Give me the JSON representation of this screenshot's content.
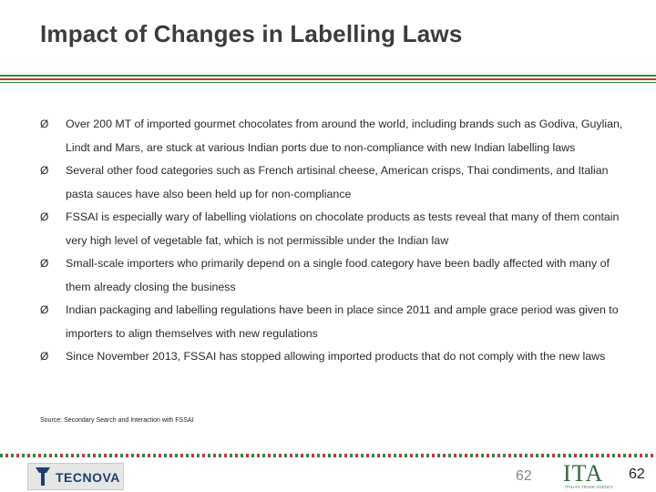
{
  "slide": {
    "title": "Impact of Changes in Labelling Laws",
    "bullet_glyph": "Ø",
    "bullets": [
      "Over 200 MT of imported gourmet chocolates from around the world, including brands such as Godiva, Guylian, Lindt and Mars, are stuck at various Indian ports due to non-compliance with new Indian labelling laws",
      "Several other food categories such as French artisinal cheese, American crisps, Thai condiments, and Italian pasta sauces have also been held up for non-compliance",
      "FSSAI is especially wary of labelling violations on chocolate products as tests reveal that many of them contain very high level of vegetable fat, which is not permissible under the Indian law",
      "Small-scale importers who primarily depend on a single food category have been badly affected with many of them already closing the business",
      "Indian packaging and labelling regulations have been in place since 2011 and ample grace period was given to importers to align themselves with new regulations",
      "Since November 2013, FSSAI has stopped allowing imported products that do not comply with the new laws"
    ],
    "source": "Source: Secondary Search and Interaction with FSSAI"
  },
  "footer": {
    "logo_left_text": "TECNOVA",
    "page_number_left": "62",
    "logo_right_text": "ITA",
    "logo_right_sub": "ITALIAN TRADE AGENCY",
    "page_number_right": "62"
  },
  "colors": {
    "accent_green": "#2f8a3a",
    "accent_red": "#c8353a",
    "title_gray": "#3c3c3c"
  }
}
